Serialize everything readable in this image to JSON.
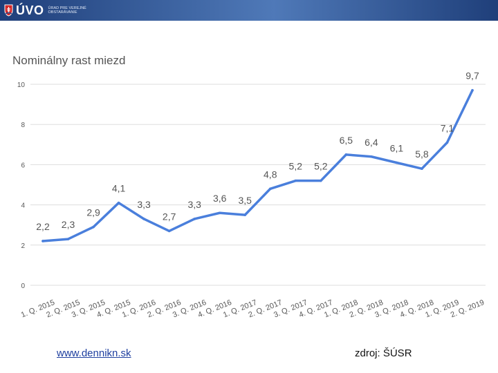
{
  "header": {
    "logo_text": "ÚVO",
    "logo_subtitle_line1": "ÚRAD PRE VEREJNÉ",
    "logo_subtitle_line2": "OBSTARÁVANIE"
  },
  "footer": {
    "link_text": "www.dennikn.sk",
    "source_text": "zdroj: ŠÚSR"
  },
  "colors": {
    "line": "#4a7fdc",
    "grid": "#dddddd",
    "header": "#2a4c8c"
  },
  "chart_data": {
    "type": "line",
    "title": "Nominálny rast miezd",
    "xlabel": "",
    "ylabel": "",
    "ylim": [
      0,
      10
    ],
    "yticks": [
      "0",
      "2",
      "4",
      "6",
      "8",
      "10"
    ],
    "categories": [
      "1. Q. 2015",
      "2. Q. 2015",
      "3. Q. 2015",
      "4. Q. 2015",
      "1. Q. 2016",
      "2. Q. 2016",
      "3. Q. 2016",
      "4. Q. 2016",
      "1. Q. 2017",
      "2. Q. 2017",
      "3. Q. 2017",
      "4. Q. 2017",
      "1. Q. 2018",
      "2. Q. 2018",
      "3. Q. 2018",
      "4. Q. 2018",
      "1. Q. 2019",
      "2. Q. 2019"
    ],
    "values": [
      2.2,
      2.3,
      2.9,
      4.1,
      3.3,
      2.7,
      3.3,
      3.6,
      3.5,
      4.8,
      5.2,
      5.2,
      6.5,
      6.4,
      6.1,
      5.8,
      7.1,
      9.7
    ],
    "data_labels": [
      "2,2",
      "2,3",
      "2,9",
      "4,1",
      "3,3",
      "2,7",
      "3,3",
      "3,6",
      "3,5",
      "4,8",
      "5,2",
      "5,2",
      "6,5",
      "6,4",
      "6,1",
      "5,8",
      "7,1",
      "9,7"
    ]
  }
}
